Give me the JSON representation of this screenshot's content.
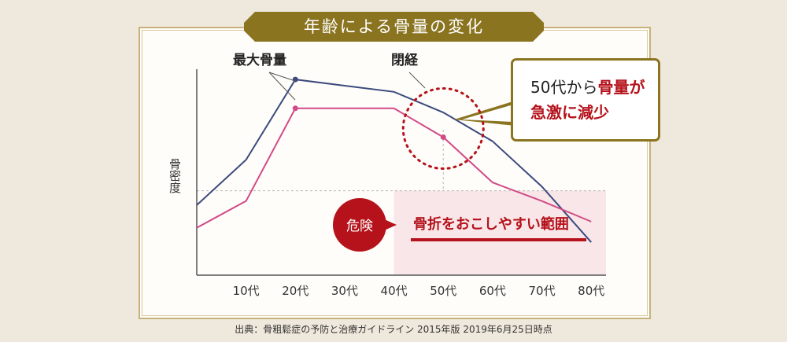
{
  "title": "年齢による骨量の変化",
  "source": "出典：骨粗鬆症の予防と治療ガイドライン 2015年版 2019年6月25日時点",
  "annotations": {
    "peak_label": "最大骨量",
    "menopause_label": "閉経",
    "callout_part1": "50代から",
    "callout_part2": "骨量が",
    "callout_part3": "急激に減少",
    "danger_badge": "危険",
    "danger_text": "骨折をおこしやすい範囲"
  },
  "colors": {
    "gold": "#8a7420",
    "navy": "#3b4a7d",
    "pink": "#d14b87",
    "danger_red": "#b5121b",
    "danger_fill": "#f8e6e8"
  },
  "chart_data": {
    "type": "line",
    "x": [
      0,
      10,
      20,
      30,
      40,
      50,
      60,
      70,
      80
    ],
    "xtick_labels": [
      "10代",
      "20代",
      "30代",
      "40代",
      "50代",
      "60代",
      "70代",
      "80代"
    ],
    "xtick_values": [
      10,
      20,
      30,
      40,
      50,
      60,
      70,
      80
    ],
    "ylabel": "骨密度",
    "xlim": [
      0,
      83
    ],
    "ylim": [
      0,
      100
    ],
    "danger_threshold": 41,
    "danger_from_x": 40,
    "menopause_x": 50,
    "series": [
      {
        "key": "upper",
        "values": [
          34,
          56,
          95,
          92,
          89,
          79,
          65,
          43,
          16
        ]
      },
      {
        "key": "lower",
        "values": [
          23,
          36,
          81,
          81,
          81,
          67,
          45,
          36,
          26
        ]
      }
    ]
  }
}
